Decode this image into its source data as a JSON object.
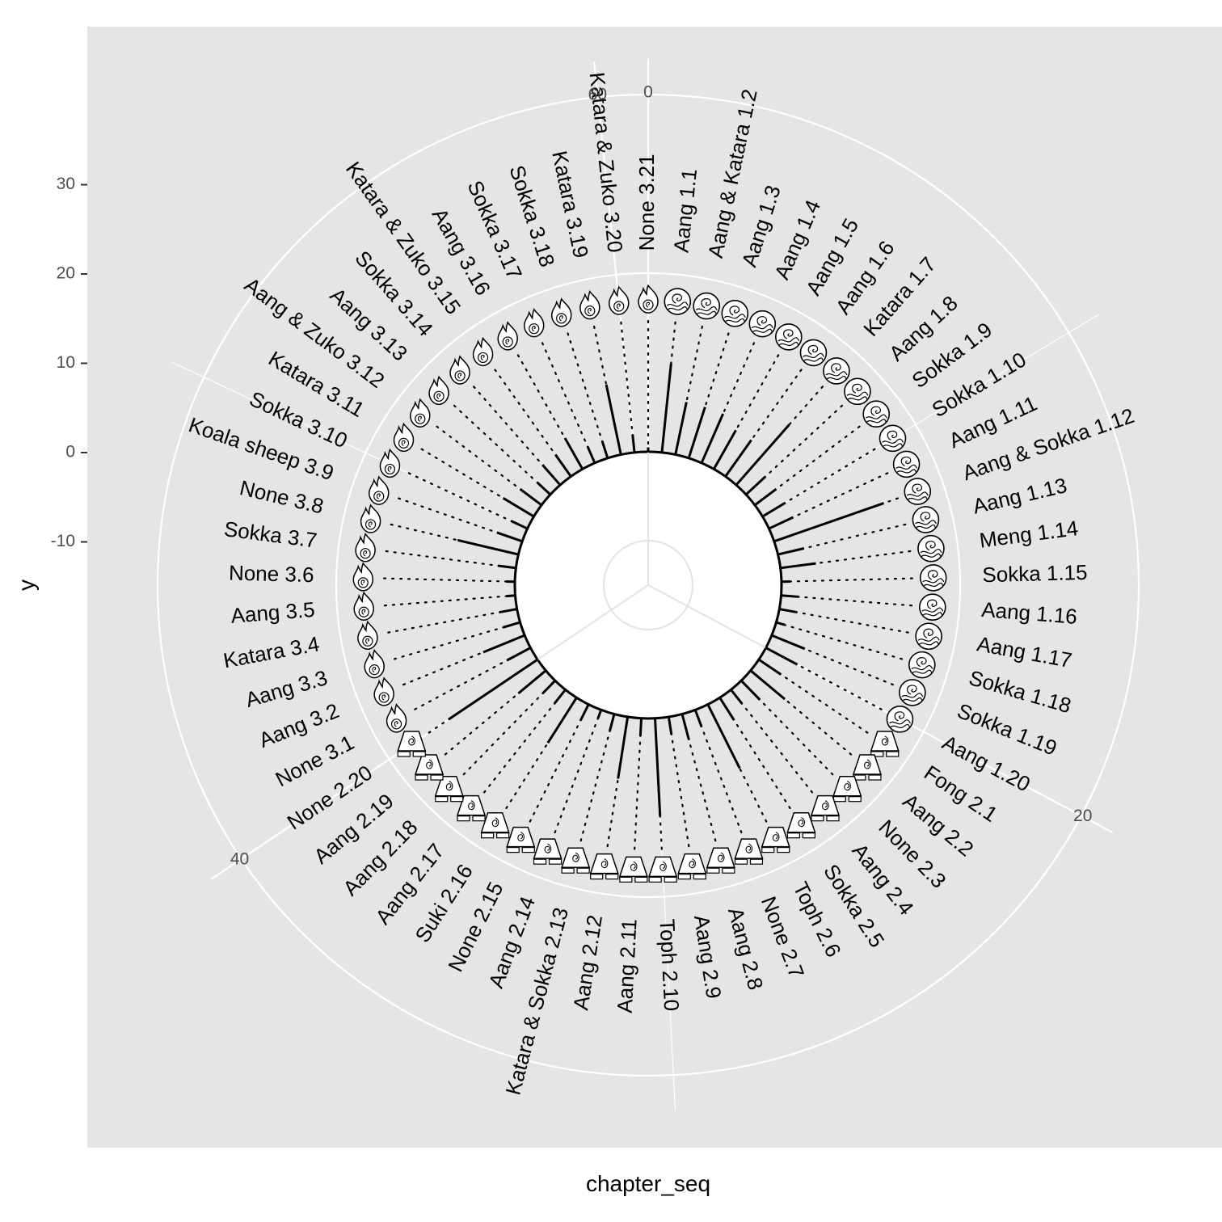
{
  "chart_data": {
    "type": "bar",
    "coord": "polar",
    "xlabel": "chapter_seq",
    "ylabel": "y",
    "y_ticks": [
      30,
      20,
      10,
      0,
      -10
    ],
    "x_ticks": [
      0,
      20,
      40,
      60
    ],
    "ylim": [
      -22,
      44
    ],
    "xlim": [
      0,
      61
    ],
    "base_radius": 0,
    "icon_radius": 17,
    "categories": [
      "None 3.21",
      "Aang 1.1",
      "Aang & Katara 1.2",
      "Aang 1.3",
      "Aang 1.4",
      "Aang 1.5",
      "Aang 1.6",
      "Katara 1.7",
      "Aang 1.8",
      "Sokka 1.9",
      "Sokka 1.10",
      "Aang 1.11",
      "Aang & Sokka 1.12",
      "Aang 1.13",
      "Meng 1.14",
      "Sokka 1.15",
      "Aang 1.16",
      "Aang 1.17",
      "Sokka 1.18",
      "Sokka 1.19",
      "Aang 1.20",
      "Fong 2.1",
      "Aang 2.2",
      "None 2.3",
      "Aang 2.4",
      "Sokka 2.5",
      "Toph 2.6",
      "None 2.7",
      "Aang 2.8",
      "Aang 2.9",
      "Toph 2.10",
      "Aang 2.11",
      "Aang 2.12",
      "Katara & Sokka 2.13",
      "Aang 2.14",
      "None 2.15",
      "Suki 2.16",
      "Aang 2.17",
      "Aang 2.18",
      "Aang 2.19",
      "None 2.20",
      "None 3.1",
      "Aang 3.2",
      "Aang 3.3",
      "Katara 3.4",
      "Aang 3.5",
      "None 3.6",
      "Sokka 3.7",
      "None 3.8",
      "Koala sheep 3.9",
      "Sokka 3.10",
      "Katara 3.11",
      "Aang & Zuko 3.12",
      "Aang 3.13",
      "Sokka 3.14",
      "Katara & Zuko 3.15",
      "Aang 3.16",
      "Sokka 3.17",
      "Sokka 3.18",
      "Katara 3.19",
      "Katara & Zuko 3.20"
    ],
    "nations": [
      "fire",
      "water",
      "water",
      "water",
      "water",
      "water",
      "water",
      "water",
      "water",
      "water",
      "water",
      "water",
      "water",
      "water",
      "water",
      "water",
      "water",
      "water",
      "water",
      "water",
      "water",
      "earth",
      "earth",
      "earth",
      "earth",
      "earth",
      "earth",
      "earth",
      "earth",
      "earth",
      "earth",
      "earth",
      "earth",
      "earth",
      "earth",
      "earth",
      "earth",
      "earth",
      "earth",
      "earth",
      "earth",
      "fire",
      "fire",
      "fire",
      "fire",
      "fire",
      "fire",
      "fire",
      "fire",
      "fire",
      "fire",
      "fire",
      "fire",
      "fire",
      "fire",
      "fire",
      "fire",
      "fire",
      "fire",
      "fire",
      "fire"
    ],
    "values": [
      0.5,
      10,
      6,
      6,
      6,
      5,
      5,
      9,
      3,
      3,
      3,
      3,
      13,
      3,
      4,
      1,
      2,
      2,
      1,
      4,
      4,
      3,
      5,
      3,
      2,
      3,
      8,
      2,
      3,
      2,
      11,
      2,
      7,
      2,
      1,
      2,
      6,
      2,
      2,
      4,
      12,
      3,
      5,
      2,
      2,
      1,
      1,
      2,
      7,
      3,
      2,
      4,
      3,
      2,
      3,
      3,
      4,
      2,
      2,
      8,
      2
    ]
  }
}
